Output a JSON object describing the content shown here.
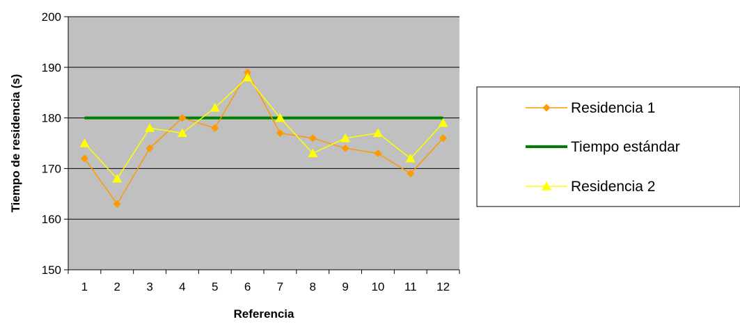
{
  "chart_data": {
    "type": "line",
    "title": "",
    "xlabel": "Referencia",
    "ylabel": "Tiempo de residencia (s)",
    "categories": [
      "1",
      "2",
      "3",
      "4",
      "5",
      "6",
      "7",
      "8",
      "9",
      "10",
      "11",
      "12"
    ],
    "ylim": [
      150,
      200
    ],
    "yticks": [
      150,
      160,
      170,
      180,
      190,
      200
    ],
    "grid": "horizontal",
    "plot_background": "#c0c0c0",
    "legend_position": "right",
    "series": [
      {
        "name": "Residencia 1",
        "color": "#ff9900",
        "marker": "diamond",
        "values": [
          172,
          163,
          174,
          180,
          178,
          189,
          177,
          176,
          174,
          173,
          169,
          176
        ]
      },
      {
        "name": "Tiempo estándar",
        "color": "#008000",
        "marker": "none",
        "values": [
          180,
          180,
          180,
          180,
          180,
          180,
          180,
          180,
          180,
          180,
          180,
          180
        ]
      },
      {
        "name": "Residencia 2",
        "color": "#ffff00",
        "marker": "triangle",
        "values": [
          175,
          168,
          178,
          177,
          182,
          188,
          180,
          173,
          176,
          177,
          172,
          179
        ]
      }
    ]
  }
}
